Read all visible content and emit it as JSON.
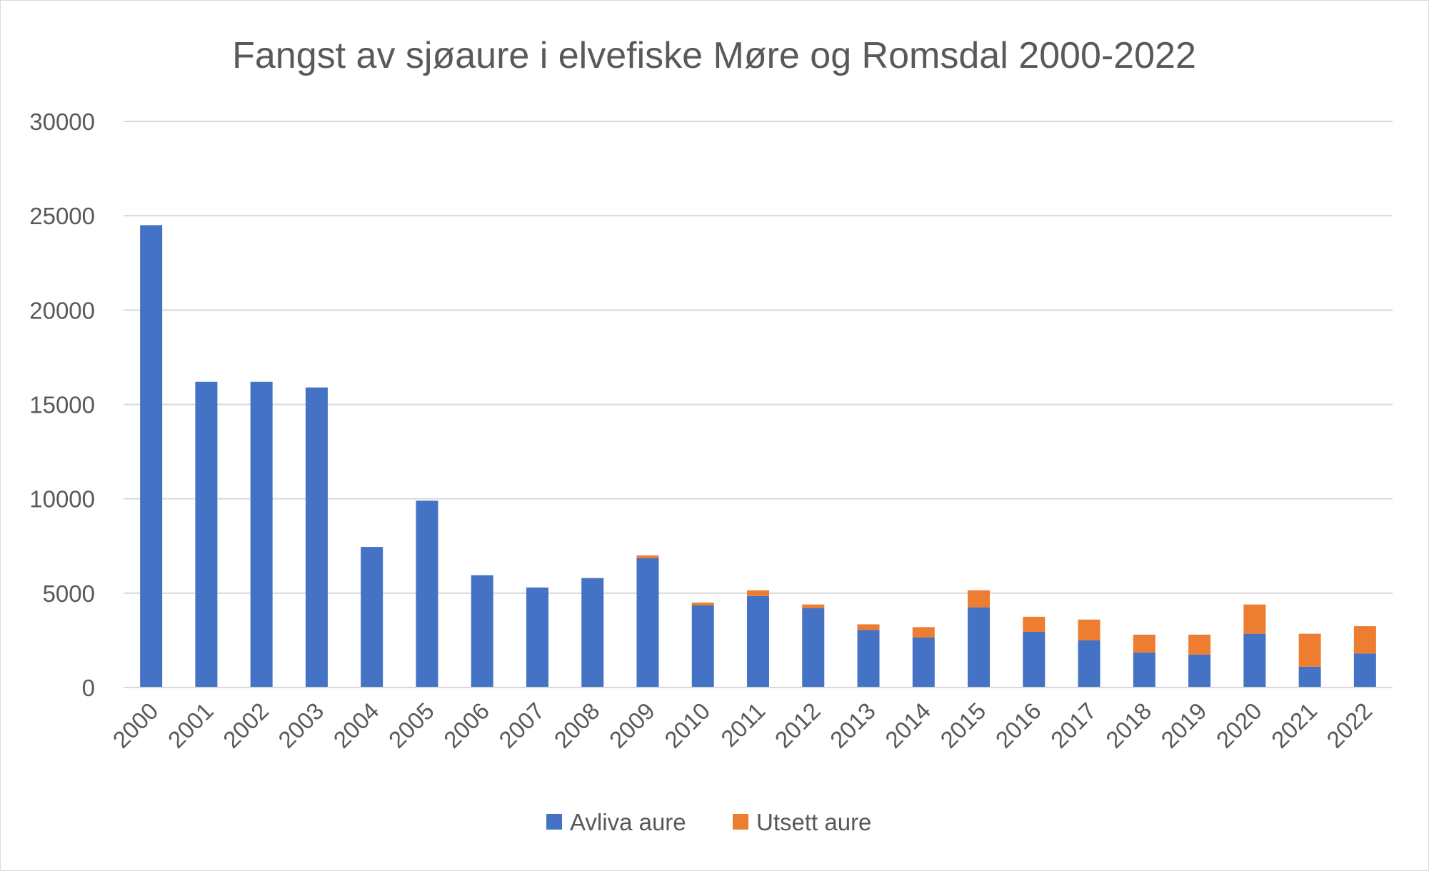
{
  "chart_data": {
    "type": "bar",
    "stacked": true,
    "title": "Fangst av sjøaure i elvefiske Møre og Romsdal 2000-2022",
    "xlabel": "",
    "ylabel": "",
    "ylim": [
      0,
      30000
    ],
    "yticks": [
      0,
      5000,
      10000,
      15000,
      20000,
      25000,
      30000
    ],
    "grid": true,
    "legend_position": "bottom",
    "categories": [
      "2000",
      "2001",
      "2002",
      "2003",
      "2004",
      "2005",
      "2006",
      "2007",
      "2008",
      "2009",
      "2010",
      "2011",
      "2012",
      "2013",
      "2014",
      "2015",
      "2016",
      "2017",
      "2018",
      "2019",
      "2020",
      "2021",
      "2022"
    ],
    "series": [
      {
        "name": "Avliva aure",
        "color": "#4472C4",
        "values": [
          24500,
          16200,
          16200,
          15900,
          7450,
          9900,
          5950,
          5300,
          5800,
          6850,
          4350,
          4850,
          4200,
          3050,
          2650,
          4250,
          2950,
          2500,
          1850,
          1750,
          2850,
          1100,
          1800
        ]
      },
      {
        "name": "Utsett aure",
        "color": "#ED7D31",
        "values": [
          0,
          0,
          0,
          0,
          0,
          0,
          0,
          0,
          0,
          150,
          150,
          300,
          200,
          300,
          550,
          900,
          800,
          1100,
          950,
          1050,
          1550,
          1750,
          1450
        ]
      }
    ]
  }
}
